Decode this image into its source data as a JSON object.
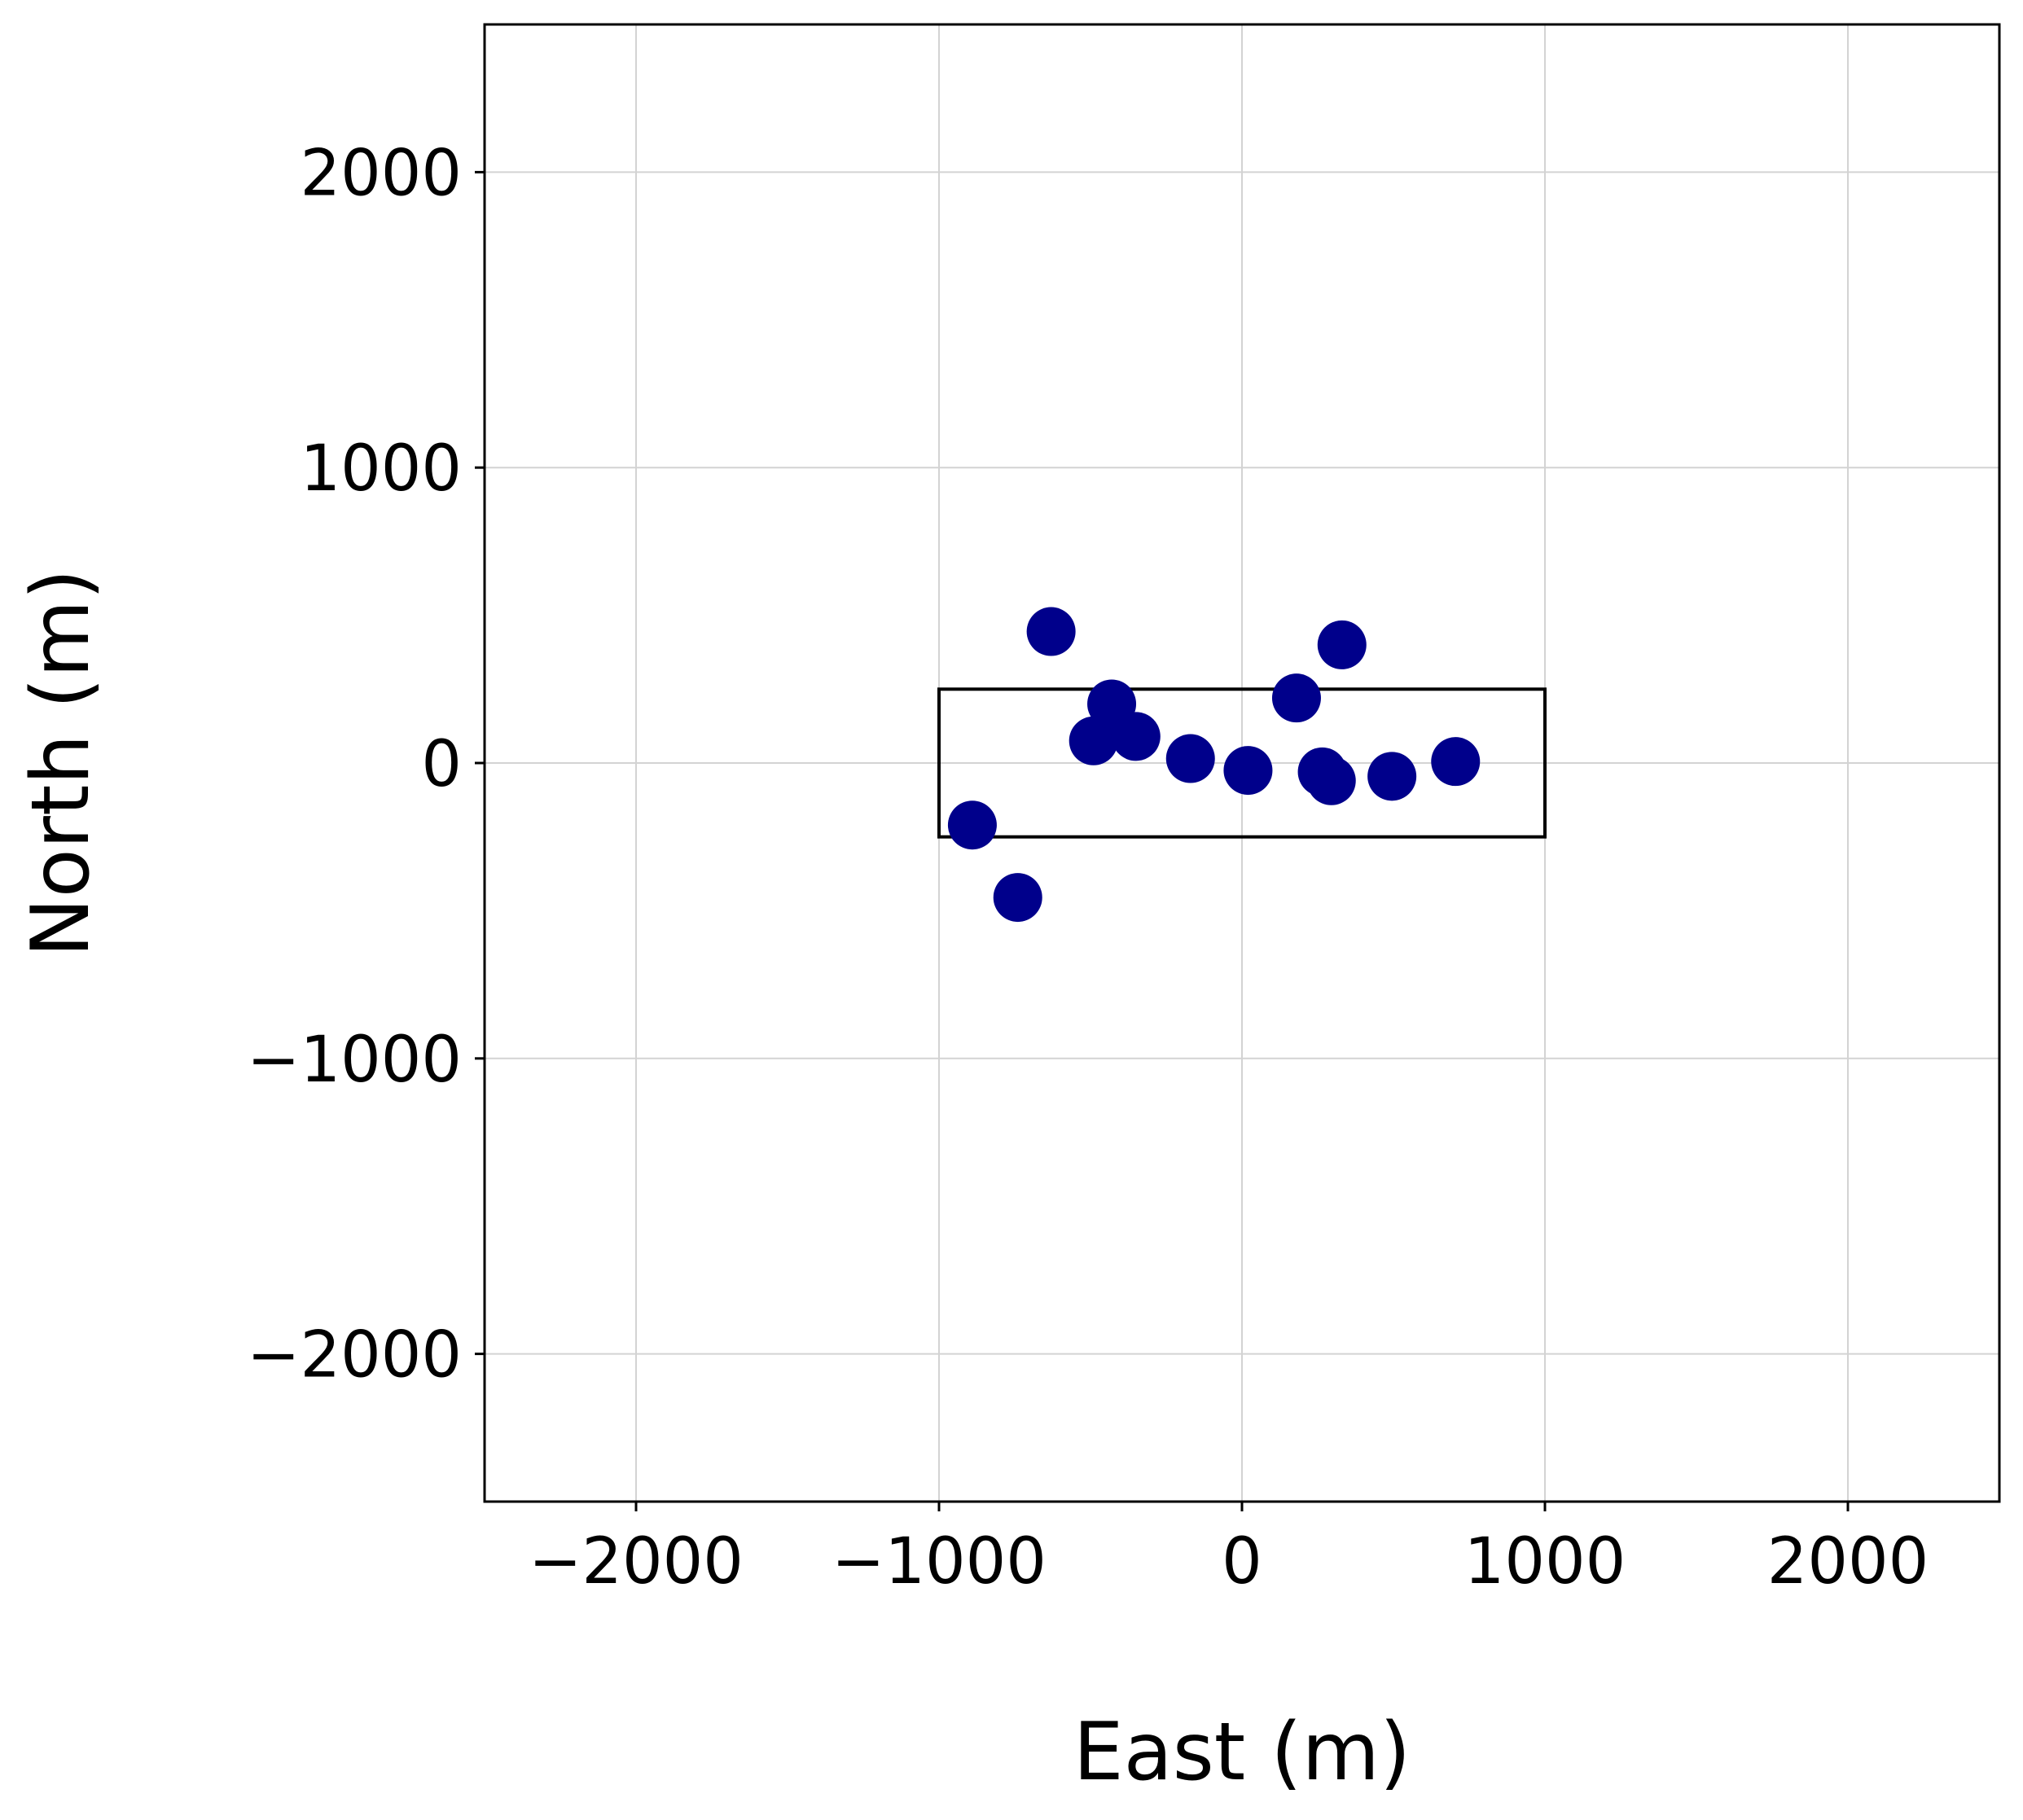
{
  "chart_data": {
    "type": "scatter",
    "title": "",
    "xlabel": "East (m)",
    "ylabel": "North (m)",
    "xlim": [
      -2500,
      2500
    ],
    "ylim": [
      -2500,
      2500
    ],
    "grid": true,
    "xticks": [
      -2000,
      -1000,
      0,
      1000,
      2000
    ],
    "yticks": [
      -2000,
      -1000,
      0,
      1000,
      2000
    ],
    "xtick_labels": [
      "−2000",
      "−1000",
      "0",
      "1000",
      "2000"
    ],
    "ytick_labels": [
      "−2000",
      "−1000",
      "0",
      "1000",
      "2000"
    ],
    "rectangle": {
      "x0": -1000,
      "x1": 1000,
      "y0": -250,
      "y1": 250
    },
    "series": [
      {
        "color": "#00008b",
        "points": [
          {
            "x": -890,
            "y": -210
          },
          {
            "x": -740,
            "y": -455
          },
          {
            "x": -630,
            "y": 445
          },
          {
            "x": -490,
            "y": 75
          },
          {
            "x": -430,
            "y": 200
          },
          {
            "x": -350,
            "y": 90
          },
          {
            "x": -170,
            "y": 15
          },
          {
            "x": 20,
            "y": -25
          },
          {
            "x": 180,
            "y": 220
          },
          {
            "x": 265,
            "y": -30
          },
          {
            "x": 295,
            "y": -60
          },
          {
            "x": 330,
            "y": 400
          },
          {
            "x": 495,
            "y": -45
          },
          {
            "x": 705,
            "y": 5
          }
        ]
      }
    ]
  }
}
